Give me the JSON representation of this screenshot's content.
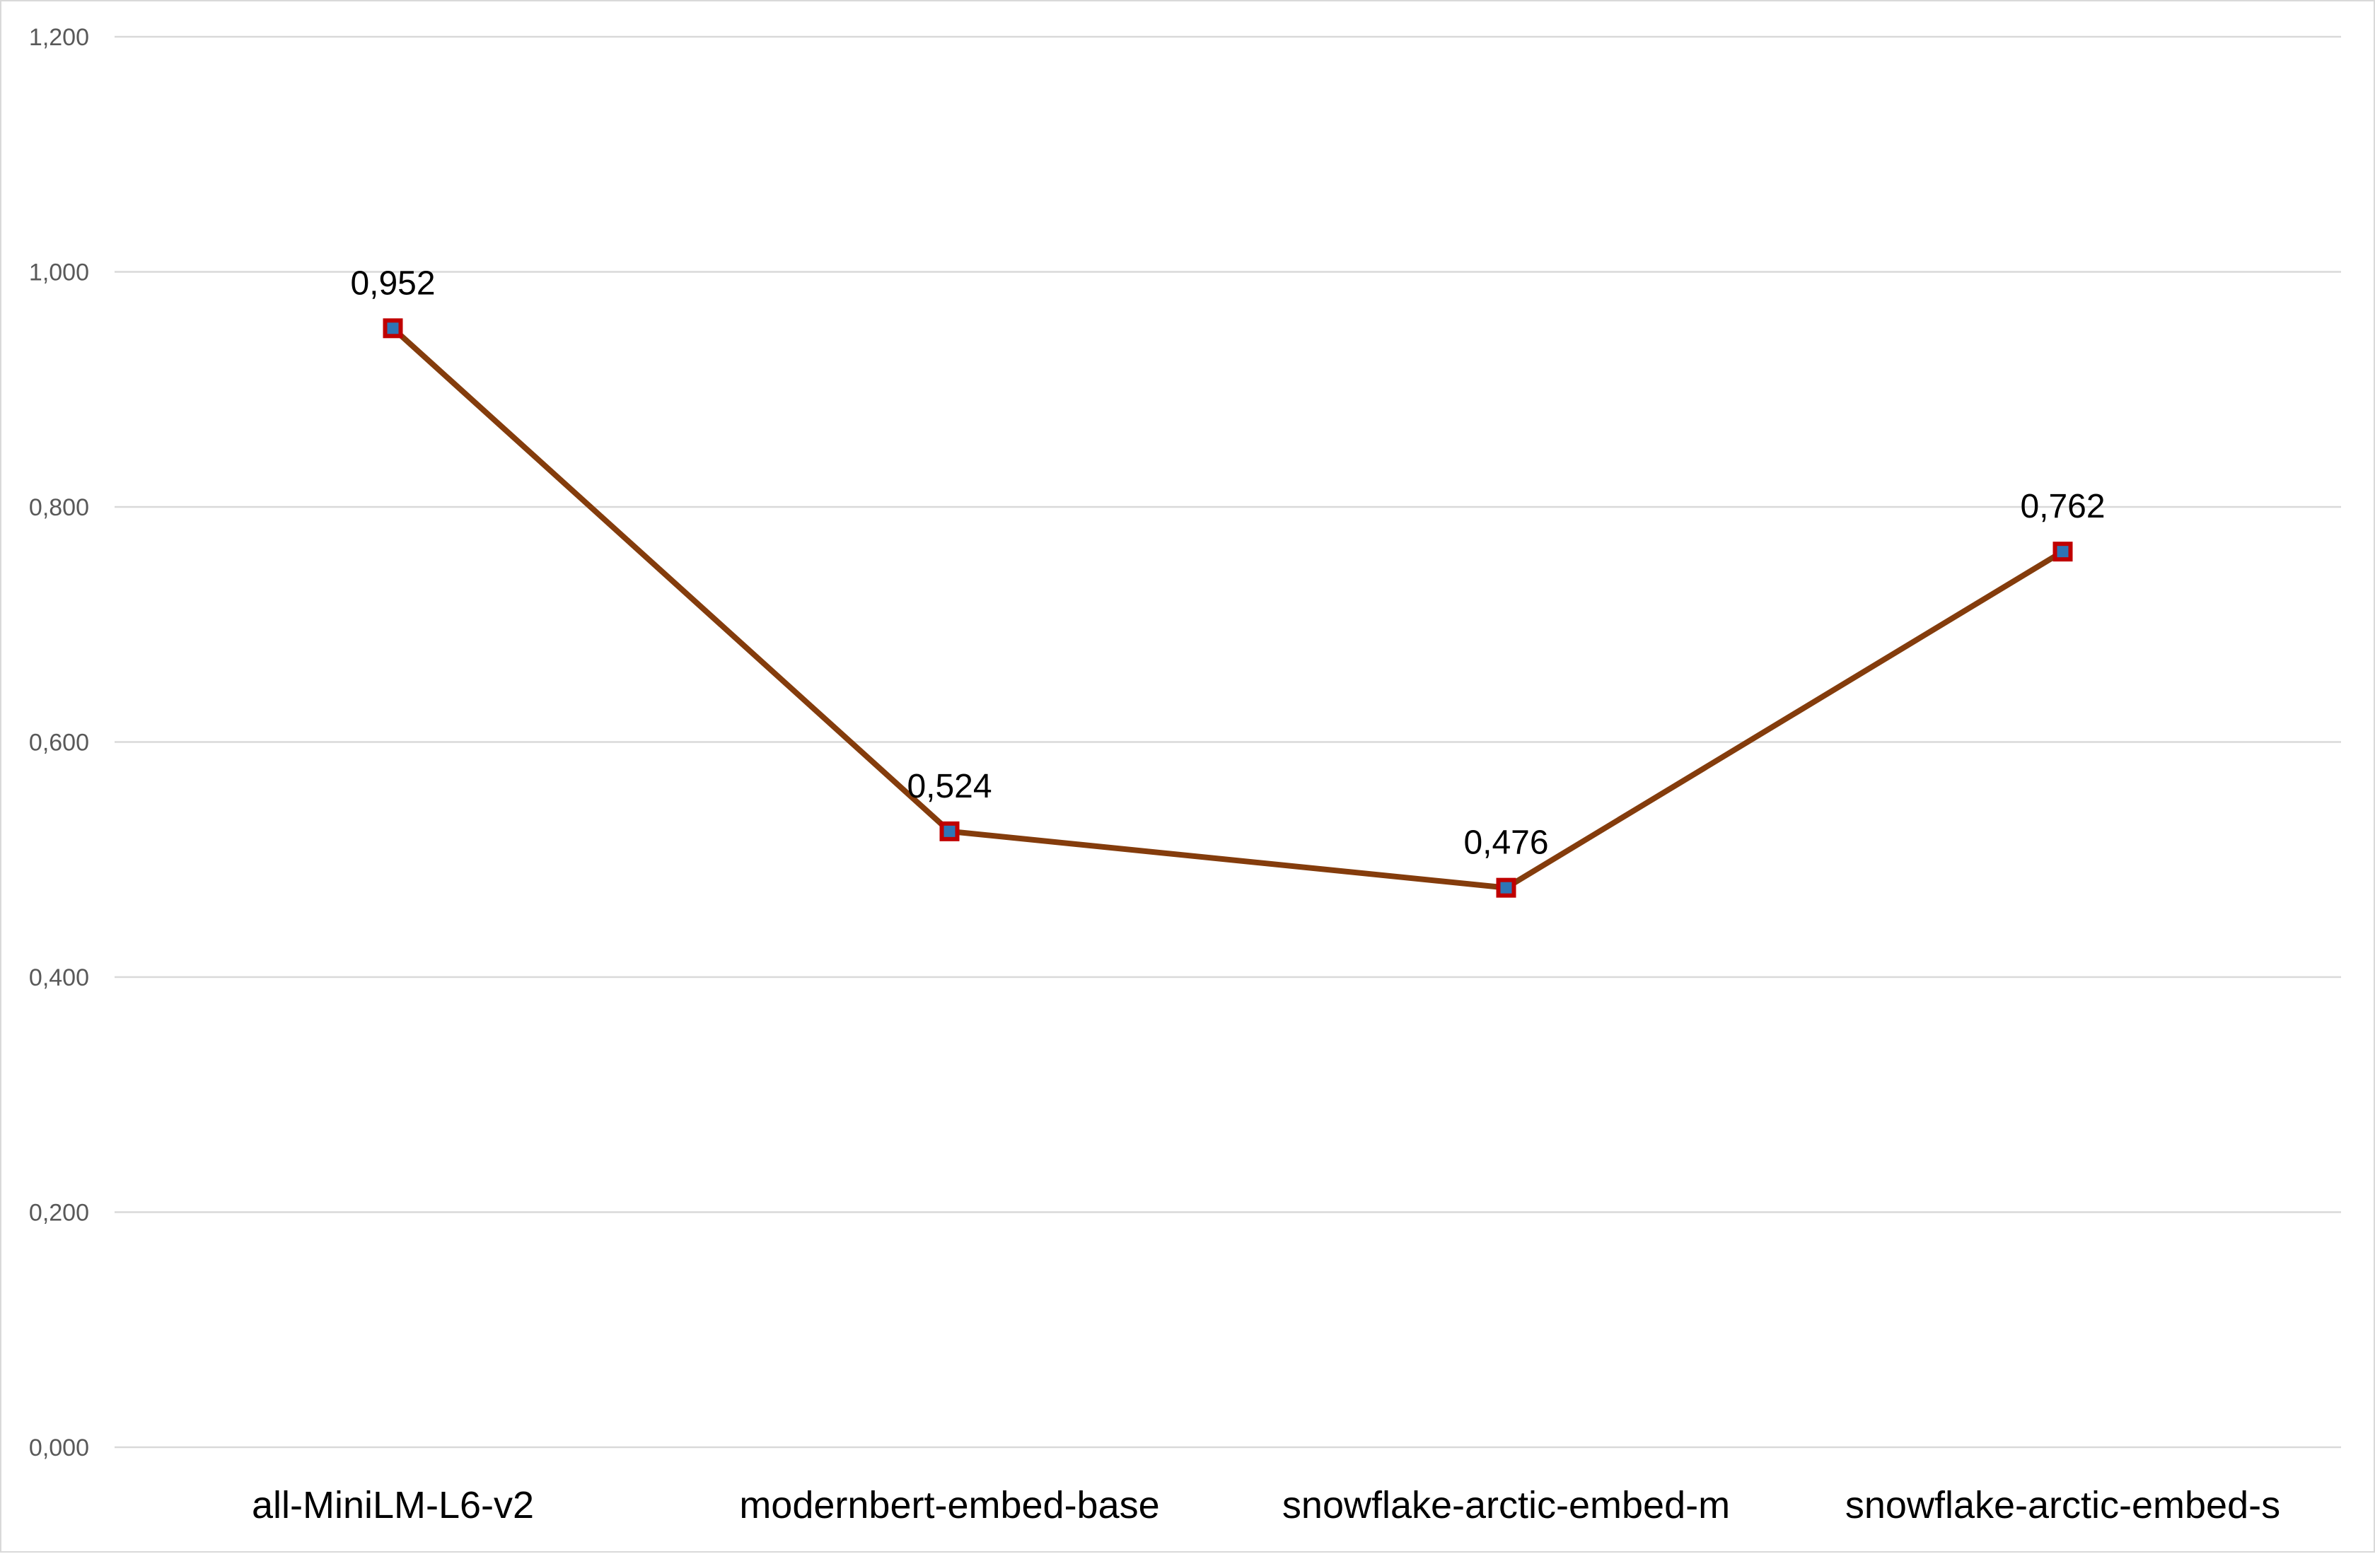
{
  "chart_data": {
    "type": "line",
    "title": "",
    "xlabel": "",
    "ylabel": "",
    "categories": [
      "all-MiniLM-L6-v2",
      "modernbert-embed-base",
      "snowflake-arctic-embed-m",
      "snowflake-arctic-embed-s"
    ],
    "series": [
      {
        "values": [
          0.952,
          0.524,
          0.476,
          0.762
        ],
        "data_labels": [
          "0,952",
          "0,524",
          "0,476",
          "0,762"
        ],
        "line_color": "#843c0c",
        "marker": "square",
        "marker_fill": "#2e75b6",
        "marker_border": "#c00000"
      }
    ],
    "ylim": [
      0,
      1.2
    ],
    "yticks": [
      0,
      0.2,
      0.4,
      0.6,
      0.8,
      1.0,
      1.2
    ],
    "ytick_labels": [
      "0,000",
      "0,200",
      "0,400",
      "0,600",
      "0,800",
      "1,000",
      "1,200"
    ],
    "grid": true,
    "legend": "none",
    "colors": {
      "gridline": "#d9d9d9",
      "axis_text": "#595959",
      "category_text": "#000000",
      "border": "#d9d9d9"
    }
  }
}
